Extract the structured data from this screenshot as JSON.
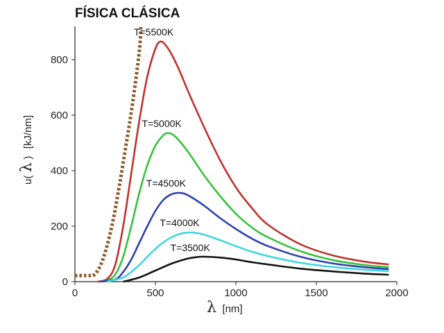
{
  "chart_data": {
    "type": "line",
    "title": "FÍSICA CLÁSICA",
    "xlabel": {
      "symbol": "λ",
      "unit": "[nm]"
    },
    "ylabel": {
      "prefix": "u(",
      "symbol": "λ",
      "suffix": ")",
      "unit": "[kJ/nm]"
    },
    "xlim": [
      0,
      2000
    ],
    "ylim": [
      0,
      920
    ],
    "xticks": [
      0,
      500,
      1000,
      1500,
      2000
    ],
    "yticks": [
      0,
      200,
      400,
      600,
      800
    ],
    "series": [
      {
        "name": "T=5500K",
        "style": "solid",
        "color": "#c0302b",
        "x": [
          140,
          200,
          250,
          300,
          350,
          400,
          450,
          500,
          530,
          560,
          600,
          650,
          700,
          800,
          900,
          1000,
          1100,
          1200,
          1400,
          1600,
          1800,
          1950
        ],
        "y": [
          0,
          10,
          60,
          200,
          390,
          580,
          740,
          840,
          865,
          855,
          820,
          760,
          690,
          560,
          440,
          340,
          265,
          205,
          135,
          95,
          72,
          62
        ]
      },
      {
        "name": "T=5000K",
        "style": "solid",
        "color": "#33c23a",
        "x": [
          150,
          200,
          250,
          300,
          350,
          400,
          450,
          500,
          550,
          580,
          620,
          700,
          800,
          900,
          1000,
          1100,
          1200,
          1400,
          1600,
          1800,
          1950
        ],
        "y": [
          0,
          5,
          25,
          90,
          200,
          320,
          420,
          490,
          528,
          535,
          525,
          470,
          385,
          310,
          245,
          195,
          160,
          110,
          78,
          60,
          52
        ]
      },
      {
        "name": "T=4500K",
        "style": "solid",
        "color": "#2e3fb0",
        "x": [
          150,
          250,
          300,
          350,
          400,
          450,
          500,
          550,
          600,
          650,
          700,
          800,
          900,
          1000,
          1100,
          1200,
          1400,
          1600,
          1800,
          1950
        ],
        "y": [
          0,
          8,
          35,
          80,
          140,
          200,
          255,
          295,
          315,
          320,
          312,
          275,
          230,
          190,
          155,
          128,
          90,
          66,
          52,
          45
        ]
      },
      {
        "name": "T=4000K",
        "style": "solid",
        "color": "#3ed6dc",
        "x": [
          200,
          300,
          350,
          400,
          450,
          500,
          550,
          600,
          650,
          700,
          750,
          800,
          900,
          1000,
          1100,
          1200,
          1400,
          1600,
          1800,
          1950
        ],
        "y": [
          0,
          15,
          35,
          60,
          90,
          118,
          142,
          160,
          172,
          177,
          176,
          170,
          150,
          128,
          108,
          92,
          68,
          53,
          43,
          38
        ]
      },
      {
        "name": "T=3500K",
        "style": "solid",
        "color": "#111111",
        "x": [
          300,
          400,
          500,
          600,
          700,
          750,
          800,
          900,
          1000,
          1100,
          1200,
          1400,
          1600,
          1800,
          1950
        ],
        "y": [
          0,
          15,
          40,
          65,
          83,
          88,
          90,
          87,
          80,
          70,
          62,
          47,
          37,
          29,
          25
        ]
      },
      {
        "name": "",
        "style": "dotted",
        "color": "#8b5a2b",
        "x": [
          0,
          80,
          120,
          160,
          200,
          240,
          280,
          320,
          360,
          400,
          410
        ],
        "y": [
          22,
          22,
          25,
          60,
          130,
          230,
          360,
          500,
          650,
          830,
          920
        ]
      }
    ],
    "grid": false,
    "legend": "inline labels"
  }
}
